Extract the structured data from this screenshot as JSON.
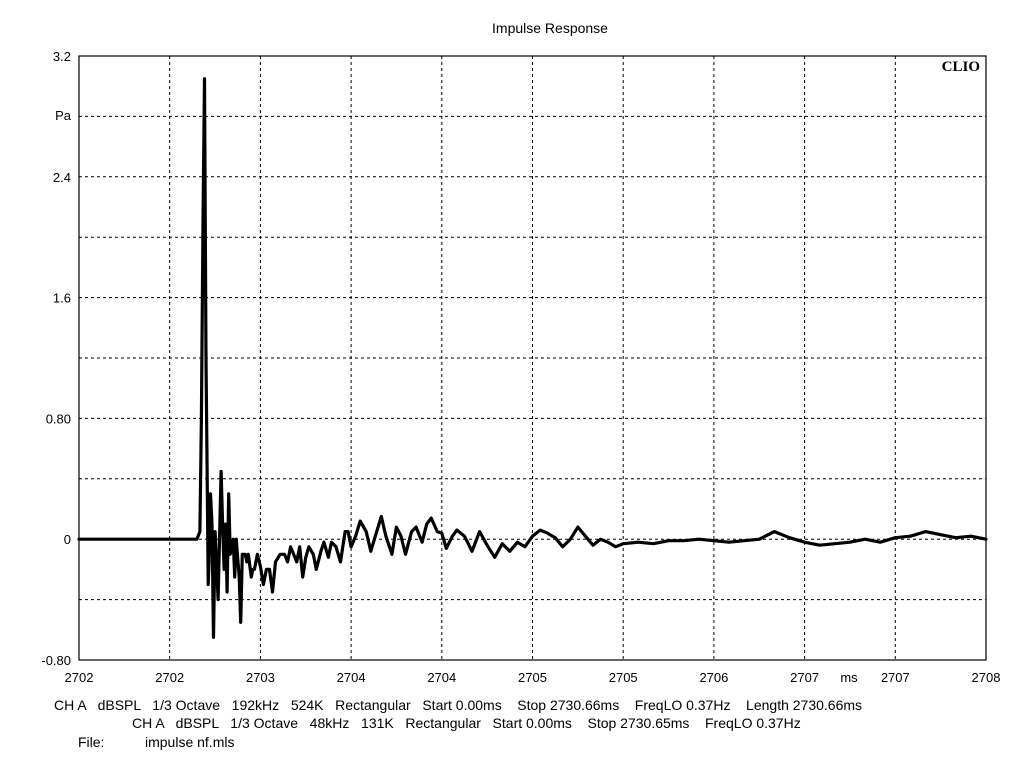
{
  "chart_data": {
    "type": "line",
    "title": "Impulse Response",
    "brand": "CLIO",
    "ylabel": "Pa",
    "xunit": "ms",
    "xlim": [
      2702.0,
      2708.0
    ],
    "ylim": [
      -0.8,
      3.2
    ],
    "yticks": [
      {
        "value": -0.8,
        "label": "-0.80"
      },
      {
        "value": 0,
        "label": "0"
      },
      {
        "value": 0.8,
        "label": "0.80"
      },
      {
        "value": 1.6,
        "label": "1.6"
      },
      {
        "value": 2.4,
        "label": "2.4"
      },
      {
        "value": 3.2,
        "label": "3.2"
      }
    ],
    "xticks": [
      {
        "value": 2702.0,
        "label": "2702"
      },
      {
        "value": 2702.6,
        "label": "2702"
      },
      {
        "value": 2703.2,
        "label": "2703"
      },
      {
        "value": 2703.8,
        "label": "2704"
      },
      {
        "value": 2704.4,
        "label": "2704"
      },
      {
        "value": 2705.0,
        "label": "2705"
      },
      {
        "value": 2705.6,
        "label": "2705"
      },
      {
        "value": 2706.2,
        "label": "2706"
      },
      {
        "value": 2706.8,
        "label": "2707"
      },
      {
        "value": 2707.4,
        "label": "2707"
      },
      {
        "value": 2708.0,
        "label": "2708"
      }
    ],
    "grid": true,
    "series": [
      {
        "color": "#000000",
        "x": [
          2702.0,
          2702.5,
          2702.78,
          2702.8,
          2702.81,
          2702.82,
          2702.83,
          2702.84,
          2702.85,
          2702.855,
          2702.86,
          2702.87,
          2702.88,
          2702.89,
          2702.9,
          2702.92,
          2702.94,
          2702.95,
          2702.96,
          2702.97,
          2702.98,
          2702.99,
          2703.0,
          2703.02,
          2703.03,
          2703.04,
          2703.06,
          2703.07,
          2703.08,
          2703.1,
          2703.11,
          2703.12,
          2703.14,
          2703.15,
          2703.16,
          2703.18,
          2703.2,
          2703.22,
          2703.24,
          2703.26,
          2703.28,
          2703.3,
          2703.33,
          2703.36,
          2703.38,
          2703.4,
          2703.42,
          2703.44,
          2703.46,
          2703.48,
          2703.5,
          2703.52,
          2703.55,
          2703.57,
          2703.6,
          2703.62,
          2703.65,
          2703.67,
          2703.7,
          2703.73,
          2703.76,
          2703.78,
          2703.8,
          2703.83,
          2703.86,
          2703.9,
          2703.93,
          2703.96,
          2704.0,
          2704.03,
          2704.07,
          2704.1,
          2704.13,
          2704.16,
          2704.2,
          2704.23,
          2704.27,
          2704.3,
          2704.33,
          2704.37,
          2704.4,
          2704.43,
          2704.47,
          2704.5,
          2704.55,
          2704.6,
          2704.65,
          2704.7,
          2704.75,
          2704.8,
          2704.85,
          2704.9,
          2704.95,
          2705.0,
          2705.05,
          2705.1,
          2705.15,
          2705.2,
          2705.25,
          2705.3,
          2705.35,
          2705.4,
          2705.45,
          2705.5,
          2705.55,
          2705.6,
          2705.7,
          2705.8,
          2705.9,
          2706.0,
          2706.1,
          2706.2,
          2706.3,
          2706.4,
          2706.5,
          2706.6,
          2706.7,
          2706.8,
          2706.9,
          2707.0,
          2707.1,
          2707.2,
          2707.3,
          2707.4,
          2707.5,
          2707.6,
          2707.7,
          2707.8,
          2707.9,
          2708.0
        ],
        "y": [
          0,
          0,
          0,
          0.05,
          0.8,
          2.1,
          3.05,
          1.2,
          0.2,
          -0.3,
          -0.15,
          0.3,
          0.1,
          -0.65,
          0.05,
          -0.4,
          0.45,
          0.1,
          -0.2,
          0.1,
          -0.35,
          0.3,
          -0.1,
          0.0,
          -0.25,
          0.0,
          -0.25,
          -0.55,
          -0.1,
          -0.1,
          -0.15,
          -0.1,
          -0.25,
          -0.2,
          -0.2,
          -0.1,
          -0.18,
          -0.3,
          -0.2,
          -0.2,
          -0.35,
          -0.15,
          -0.1,
          -0.1,
          -0.15,
          -0.05,
          -0.1,
          -0.15,
          -0.05,
          -0.25,
          -0.12,
          -0.05,
          -0.1,
          -0.2,
          -0.08,
          -0.02,
          -0.12,
          -0.02,
          -0.05,
          -0.15,
          0.05,
          0.05,
          -0.05,
          0.02,
          0.12,
          0.05,
          -0.08,
          0.02,
          0.15,
          0.02,
          -0.1,
          0.08,
          0.02,
          -0.1,
          0.05,
          0.08,
          -0.02,
          0.1,
          0.14,
          0.05,
          0.04,
          -0.06,
          0.02,
          0.06,
          0.02,
          -0.08,
          0.05,
          -0.04,
          -0.12,
          -0.03,
          -0.08,
          -0.02,
          -0.05,
          0.02,
          0.06,
          0.04,
          0.01,
          -0.05,
          0.0,
          0.08,
          0.02,
          -0.04,
          0.0,
          -0.02,
          -0.05,
          -0.03,
          -0.02,
          -0.03,
          -0.01,
          -0.01,
          0.0,
          -0.01,
          -0.02,
          -0.01,
          0.0,
          0.05,
          0.01,
          -0.02,
          -0.04,
          -0.03,
          -0.02,
          0.0,
          -0.02,
          0.01,
          0.02,
          0.05,
          0.03,
          0.01,
          0.02,
          0.0
        ]
      }
    ]
  },
  "footer": {
    "line1": "CH A   dBSPL   1/3 Octave   192kHz   524K   Rectangular   Start 0.00ms    Stop 2730.66ms    FreqLO 0.37Hz    Length 2730.66ms",
    "line2": "CH A   dBSPL   1/3 Octave   48kHz   131K   Rectangular   Start 0.00ms    Stop 2730.65ms    FreqLO 0.37Hz",
    "file_label": "File:",
    "file_name": "impulse nf.mls"
  }
}
